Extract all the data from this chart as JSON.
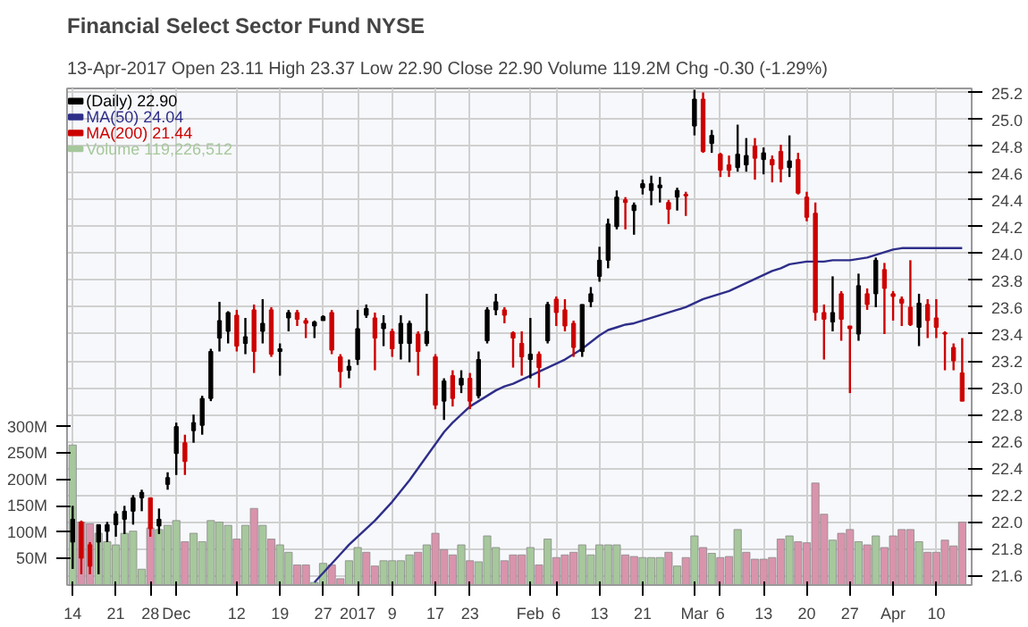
{
  "chart_data": {
    "type": "candlestick",
    "title": "Financial Select Sector Fund  NYSE",
    "subtitle": "13-Apr-2017     Open 23.11  High 23.37  Low 22.90  Close 22.90  Volume 119.2M  Chg -0.30 (-1.29%)",
    "categories": [
      "14",
      null,
      null,
      null,
      null,
      "21",
      null,
      null,
      null,
      "28",
      null,
      null,
      "Dec",
      null,
      null,
      null,
      null,
      null,
      null,
      "12",
      null,
      null,
      null,
      null,
      "19",
      null,
      null,
      null,
      null,
      "27",
      null,
      null,
      null,
      "2017",
      null,
      null,
      null,
      "9",
      null,
      null,
      null,
      null,
      "17",
      null,
      null,
      null,
      "23",
      null,
      null,
      null,
      null,
      null,
      null,
      "Feb",
      null,
      null,
      "6",
      null,
      null,
      null,
      null,
      "13",
      null,
      null,
      null,
      null,
      "21",
      null,
      null,
      null,
      null,
      null,
      "Mar",
      null,
      null,
      "6",
      null,
      null,
      null,
      null,
      "13",
      null,
      null,
      null,
      null,
      "20",
      null,
      null,
      null,
      null,
      "27",
      null,
      null,
      null,
      null,
      "Apr",
      null,
      null,
      null,
      null,
      "10",
      null,
      null,
      null
    ],
    "series": [
      {
        "name": "(Daily) 22.90",
        "color": "#000000",
        "ohlc": [
          [
            21.85,
            22.12,
            21.65,
            22.02
          ],
          [
            22.0,
            22.01,
            21.61,
            21.73
          ],
          [
            21.83,
            21.85,
            21.61,
            21.67
          ],
          [
            21.85,
            21.98,
            21.61,
            21.98
          ],
          [
            21.93,
            22.0,
            21.85,
            21.98
          ],
          [
            21.98,
            22.08,
            21.89,
            22.06
          ],
          [
            22.02,
            22.12,
            21.91,
            22.08
          ],
          [
            22.08,
            22.2,
            21.98,
            22.18
          ],
          [
            22.18,
            22.24,
            22.08,
            22.22
          ],
          [
            22.18,
            22.18,
            21.89,
            21.95
          ],
          [
            21.97,
            22.1,
            21.91,
            22.02
          ],
          [
            22.28,
            22.37,
            22.24,
            22.33
          ],
          [
            22.51,
            22.74,
            22.35,
            22.71
          ],
          [
            22.59,
            22.65,
            22.35,
            22.45
          ],
          [
            22.68,
            22.8,
            22.59,
            22.74
          ],
          [
            22.72,
            22.94,
            22.65,
            22.92
          ],
          [
            22.92,
            23.29,
            22.9,
            23.27
          ],
          [
            23.37,
            23.64,
            23.27,
            23.5
          ],
          [
            23.42,
            23.57,
            23.33,
            23.56
          ],
          [
            23.54,
            23.58,
            23.27,
            23.31
          ],
          [
            23.33,
            23.52,
            23.25,
            23.38
          ],
          [
            23.58,
            23.62,
            23.11,
            23.27
          ],
          [
            23.42,
            23.66,
            23.33,
            23.48
          ],
          [
            23.58,
            23.6,
            23.23,
            23.25
          ],
          [
            23.27,
            23.33,
            23.09,
            23.29
          ],
          [
            23.52,
            23.58,
            23.42,
            23.56
          ],
          [
            23.56,
            23.58,
            23.46,
            23.51
          ],
          [
            23.5,
            23.52,
            23.37,
            23.48
          ],
          [
            23.46,
            23.5,
            23.37,
            23.49
          ],
          [
            23.5,
            23.54,
            23.5,
            23.53
          ],
          [
            23.56,
            23.58,
            23.25,
            23.28
          ],
          [
            23.23,
            23.25,
            23.0,
            23.12
          ],
          [
            23.13,
            23.21,
            23.07,
            23.16
          ],
          [
            23.21,
            23.58,
            23.17,
            23.44
          ],
          [
            23.54,
            23.62,
            23.52,
            23.59
          ],
          [
            23.52,
            23.56,
            23.13,
            23.37
          ],
          [
            23.44,
            23.54,
            23.31,
            23.48
          ],
          [
            23.42,
            23.44,
            23.23,
            23.29
          ],
          [
            23.33,
            23.54,
            23.21,
            23.48
          ],
          [
            23.33,
            23.5,
            23.19,
            23.48
          ],
          [
            23.4,
            23.42,
            23.09,
            23.27
          ],
          [
            23.33,
            23.7,
            23.31,
            23.42
          ],
          [
            23.23,
            23.25,
            22.84,
            22.87
          ],
          [
            22.9,
            23.07,
            22.76,
            23.05
          ],
          [
            23.09,
            23.13,
            22.86,
            22.92
          ],
          [
            23.02,
            23.13,
            22.96,
            23.07
          ],
          [
            23.07,
            23.11,
            22.84,
            22.9
          ],
          [
            22.94,
            23.27,
            22.92,
            23.21
          ],
          [
            23.35,
            23.6,
            23.33,
            23.58
          ],
          [
            23.58,
            23.7,
            23.54,
            23.64
          ],
          [
            23.58,
            23.6,
            23.48,
            23.54
          ],
          [
            23.41,
            23.42,
            23.15,
            23.37
          ],
          [
            23.33,
            23.42,
            23.09,
            23.23
          ],
          [
            23.21,
            23.52,
            23.07,
            23.25
          ],
          [
            23.25,
            23.27,
            23.0,
            23.15
          ],
          [
            23.35,
            23.64,
            23.33,
            23.62
          ],
          [
            23.66,
            23.68,
            23.46,
            23.56
          ],
          [
            23.58,
            23.66,
            23.42,
            23.46
          ],
          [
            23.48,
            23.5,
            23.23,
            23.3
          ],
          [
            23.27,
            23.62,
            23.23,
            23.62
          ],
          [
            23.64,
            23.75,
            23.6,
            23.7
          ],
          [
            23.83,
            24.05,
            23.79,
            23.95
          ],
          [
            23.95,
            24.26,
            23.89,
            24.22
          ],
          [
            24.2,
            24.47,
            24.18,
            24.42
          ],
          [
            24.4,
            24.42,
            24.18,
            24.38
          ],
          [
            24.32,
            24.38,
            24.14,
            24.36
          ],
          [
            24.49,
            24.55,
            24.44,
            24.52
          ],
          [
            24.47,
            24.58,
            24.36,
            24.52
          ],
          [
            24.49,
            24.57,
            24.38,
            24.51
          ],
          [
            24.38,
            24.4,
            24.22,
            24.33
          ],
          [
            24.42,
            24.49,
            24.32,
            24.47
          ],
          [
            24.44,
            24.46,
            24.28,
            24.43
          ],
          [
            24.95,
            25.22,
            24.88,
            25.15
          ],
          [
            25.15,
            25.2,
            24.75,
            24.76
          ],
          [
            24.82,
            24.92,
            24.75,
            24.88
          ],
          [
            24.74,
            24.75,
            24.57,
            24.62
          ],
          [
            24.66,
            24.73,
            24.57,
            24.62
          ],
          [
            24.64,
            24.96,
            24.61,
            24.74
          ],
          [
            24.66,
            24.86,
            24.61,
            24.73
          ],
          [
            24.8,
            24.86,
            24.55,
            24.71
          ],
          [
            24.7,
            24.79,
            24.59,
            24.75
          ],
          [
            24.7,
            24.73,
            24.53,
            24.66
          ],
          [
            24.76,
            24.81,
            24.53,
            24.63
          ],
          [
            24.64,
            24.88,
            24.57,
            24.69
          ],
          [
            24.7,
            24.75,
            24.44,
            24.45
          ],
          [
            24.42,
            24.46,
            24.24,
            24.27
          ],
          [
            24.3,
            24.38,
            23.5,
            23.56
          ],
          [
            23.56,
            23.62,
            23.21,
            23.51
          ],
          [
            23.49,
            23.83,
            23.42,
            23.56
          ],
          [
            23.7,
            23.72,
            23.35,
            23.51
          ],
          [
            23.46,
            23.46,
            22.96,
            23.44
          ],
          [
            23.4,
            23.85,
            23.35,
            23.76
          ],
          [
            23.7,
            23.74,
            23.58,
            23.62
          ],
          [
            23.7,
            23.97,
            23.6,
            23.95
          ],
          [
            23.88,
            23.93,
            23.4,
            23.74
          ],
          [
            23.7,
            23.72,
            23.5,
            23.68
          ],
          [
            23.66,
            23.68,
            23.46,
            23.63
          ],
          [
            23.6,
            23.95,
            23.46,
            23.47
          ],
          [
            23.45,
            23.7,
            23.31,
            23.63
          ],
          [
            23.62,
            23.66,
            23.37,
            23.5
          ],
          [
            23.52,
            23.66,
            23.37,
            23.45
          ],
          [
            23.41,
            23.42,
            23.13,
            23.4
          ],
          [
            23.3,
            23.33,
            23.13,
            23.2
          ],
          [
            23.11,
            23.37,
            22.9,
            22.9
          ]
        ],
        "colors": [
          "#000000",
          "#cc0000",
          "#cc0000",
          "#000000",
          "#000000",
          "#000000",
          "#000000",
          "#000000",
          "#000000",
          "#cc0000",
          "#000000",
          "#000000",
          "#000000",
          "#cc0000",
          "#000000",
          "#000000",
          "#000000",
          "#000000",
          "#000000",
          "#cc0000",
          "#000000",
          "#cc0000",
          "#000000",
          "#cc0000",
          "#000000",
          "#000000",
          "#cc0000",
          "#cc0000",
          "#000000",
          "#000000",
          "#cc0000",
          "#cc0000",
          "#000000",
          "#000000",
          "#000000",
          "#cc0000",
          "#000000",
          "#cc0000",
          "#000000",
          "#000000",
          "#cc0000",
          "#000000",
          "#cc0000",
          "#000000",
          "#cc0000",
          "#000000",
          "#cc0000",
          "#000000",
          "#000000",
          "#000000",
          "#cc0000",
          "#cc0000",
          "#cc0000",
          "#000000",
          "#cc0000",
          "#000000",
          "#cc0000",
          "#cc0000",
          "#cc0000",
          "#000000",
          "#000000",
          "#000000",
          "#000000",
          "#000000",
          "#cc0000",
          "#000000",
          "#000000",
          "#000000",
          "#000000",
          "#cc0000",
          "#000000",
          "#cc0000",
          "#000000",
          "#cc0000",
          "#000000",
          "#cc0000",
          "#cc0000",
          "#000000",
          "#000000",
          "#cc0000",
          "#000000",
          "#cc0000",
          "#cc0000",
          "#000000",
          "#cc0000",
          "#cc0000",
          "#cc0000",
          "#cc0000",
          "#000000",
          "#cc0000",
          "#cc0000",
          "#000000",
          "#cc0000",
          "#000000",
          "#cc0000",
          "#cc0000",
          "#cc0000",
          "#cc0000",
          "#000000",
          "#cc0000",
          "#cc0000",
          "#cc0000",
          "#cc0000",
          "#cc0000"
        ]
      },
      {
        "type": "line",
        "name": "MA(50) 24.04",
        "color": "#2e2e8a",
        "values": [
          null,
          null,
          null,
          null,
          null,
          null,
          null,
          null,
          null,
          null,
          null,
          null,
          null,
          null,
          null,
          null,
          null,
          null,
          null,
          null,
          null,
          null,
          null,
          null,
          null,
          null,
          null,
          null,
          21.55,
          21.62,
          21.69,
          21.76,
          21.83,
          21.89,
          21.95,
          22.01,
          22.08,
          22.15,
          22.23,
          22.31,
          22.4,
          22.49,
          22.58,
          22.67,
          22.74,
          22.8,
          22.86,
          22.9,
          22.94,
          22.98,
          23.01,
          23.03,
          23.06,
          23.09,
          23.12,
          23.15,
          23.18,
          23.21,
          23.25,
          23.29,
          23.34,
          23.39,
          23.43,
          23.45,
          23.47,
          23.48,
          23.5,
          23.52,
          23.54,
          23.56,
          23.58,
          23.6,
          23.63,
          23.66,
          23.68,
          23.7,
          23.72,
          23.75,
          23.78,
          23.81,
          23.84,
          23.87,
          23.89,
          23.92,
          23.93,
          23.94,
          23.94,
          23.94,
          23.95,
          23.95,
          23.95,
          23.96,
          23.97,
          23.99,
          24.01,
          24.03,
          24.04,
          24.04,
          24.04,
          24.04,
          24.04,
          24.04,
          24.04,
          24.04
        ]
      },
      {
        "type": "line",
        "name": "MA(200) 21.44",
        "color": "#cc0000",
        "values": [
          null,
          null,
          null,
          null,
          null,
          null,
          null,
          null,
          null,
          null,
          null,
          null,
          null,
          null,
          null,
          null,
          null,
          null,
          null,
          null,
          null,
          null,
          null,
          null,
          null,
          null,
          null,
          null,
          null,
          null,
          null,
          null,
          null,
          null,
          null,
          null,
          null,
          null,
          null,
          null,
          null,
          null,
          null,
          null,
          null,
          null,
          null,
          null,
          null,
          null,
          null,
          null,
          null,
          null,
          null,
          null,
          null,
          null,
          null,
          null,
          null,
          null,
          null,
          null,
          null,
          null,
          null,
          null,
          null,
          null,
          null,
          null,
          null,
          null,
          null,
          null,
          null,
          null,
          null,
          null,
          null,
          null,
          null,
          null,
          null,
          null,
          null,
          null,
          null,
          null,
          null,
          null,
          null,
          null,
          null,
          null,
          null,
          null,
          null,
          null,
          null,
          null,
          null,
          null
        ]
      },
      {
        "type": "bar",
        "name": "Volume 119,226,512",
        "axis": "y2",
        "color": "#a6c89c",
        "values": [
          265,
          119,
          116,
          98,
          82,
          76,
          98,
          102,
          30,
          108,
          105,
          113,
          122,
          82,
          98,
          82,
          122,
          119,
          113,
          87,
          113,
          145,
          113,
          87,
          76,
          62,
          38,
          38,
          5,
          41,
          38,
          12,
          46,
          71,
          62,
          36,
          46,
          46,
          46,
          57,
          62,
          76,
          98,
          67,
          57,
          76,
          46,
          44,
          93,
          71,
          46,
          57,
          57,
          71,
          38,
          87,
          52,
          57,
          62,
          76,
          57,
          76,
          76,
          76,
          57,
          54,
          52,
          52,
          52,
          62,
          36,
          52,
          93,
          71,
          60,
          52,
          54,
          105,
          62,
          49,
          49,
          52,
          87,
          93,
          82,
          80,
          193,
          134,
          85,
          98,
          105,
          82,
          76,
          93,
          71,
          93,
          105,
          105,
          82,
          62,
          62,
          85,
          74,
          119
        ],
        "colors": [
          "#a6c89c",
          "#d994ac",
          "#d994ac",
          "#a6c89c",
          "#a6c89c",
          "#a6c89c",
          "#a6c89c",
          "#a6c89c",
          "#a6c89c",
          "#d994ac",
          "#a6c89c",
          "#a6c89c",
          "#a6c89c",
          "#d994ac",
          "#a6c89c",
          "#a6c89c",
          "#a6c89c",
          "#a6c89c",
          "#a6c89c",
          "#d994ac",
          "#a6c89c",
          "#d994ac",
          "#a6c89c",
          "#d994ac",
          "#a6c89c",
          "#a6c89c",
          "#d994ac",
          "#d994ac",
          "#a6c89c",
          "#a6c89c",
          "#d994ac",
          "#d994ac",
          "#a6c89c",
          "#a6c89c",
          "#d994ac",
          "#d994ac",
          "#a6c89c",
          "#a6c89c",
          "#a6c89c",
          "#a6c89c",
          "#d994ac",
          "#a6c89c",
          "#d994ac",
          "#d994ac",
          "#d994ac",
          "#a6c89c",
          "#d994ac",
          "#a6c89c",
          "#a6c89c",
          "#a6c89c",
          "#d994ac",
          "#d994ac",
          "#d994ac",
          "#a6c89c",
          "#d994ac",
          "#a6c89c",
          "#d994ac",
          "#d994ac",
          "#d994ac",
          "#a6c89c",
          "#a6c89c",
          "#a6c89c",
          "#a6c89c",
          "#a6c89c",
          "#d994ac",
          "#d994ac",
          "#a6c89c",
          "#a6c89c",
          "#a6c89c",
          "#d994ac",
          "#a6c89c",
          "#d994ac",
          "#a6c89c",
          "#d994ac",
          "#a6c89c",
          "#d994ac",
          "#d994ac",
          "#a6c89c",
          "#d994ac",
          "#d994ac",
          "#d994ac",
          "#d994ac",
          "#d994ac",
          "#a6c89c",
          "#d994ac",
          "#d994ac",
          "#d994ac",
          "#d994ac",
          "#a6c89c",
          "#d994ac",
          "#d994ac",
          "#a6c89c",
          "#d994ac",
          "#a6c89c",
          "#d994ac",
          "#d994ac",
          "#d994ac",
          "#d994ac",
          "#a6c89c",
          "#d994ac",
          "#d994ac",
          "#d994ac",
          "#d994ac",
          "#d994ac"
        ]
      }
    ],
    "ylim": [
      21.53,
      25.23
    ],
    "yticks": [
      21.6,
      21.8,
      {
        "value": 22.0,
        "label": "22.0"
      },
      22.2,
      22.4,
      22.6,
      22.8,
      {
        "value": 23.0,
        "label": "23.0"
      },
      23.2,
      23.4,
      23.6,
      23.8,
      {
        "value": 24.0,
        "label": "24.0"
      },
      24.2,
      24.4,
      24.6,
      24.8,
      {
        "value": 25.0,
        "label": "25.0"
      },
      25.2
    ],
    "y2lim": [
      0,
      940
    ],
    "y2ticks": [
      {
        "value": 50,
        "label": "50M"
      },
      {
        "value": 100,
        "label": "100M"
      },
      {
        "value": 150,
        "label": "150M"
      },
      {
        "value": 200,
        "label": "200M"
      },
      {
        "value": 250,
        "label": "250M"
      },
      {
        "value": 300,
        "label": "300M"
      }
    ],
    "grid": true,
    "legend": "top left"
  }
}
